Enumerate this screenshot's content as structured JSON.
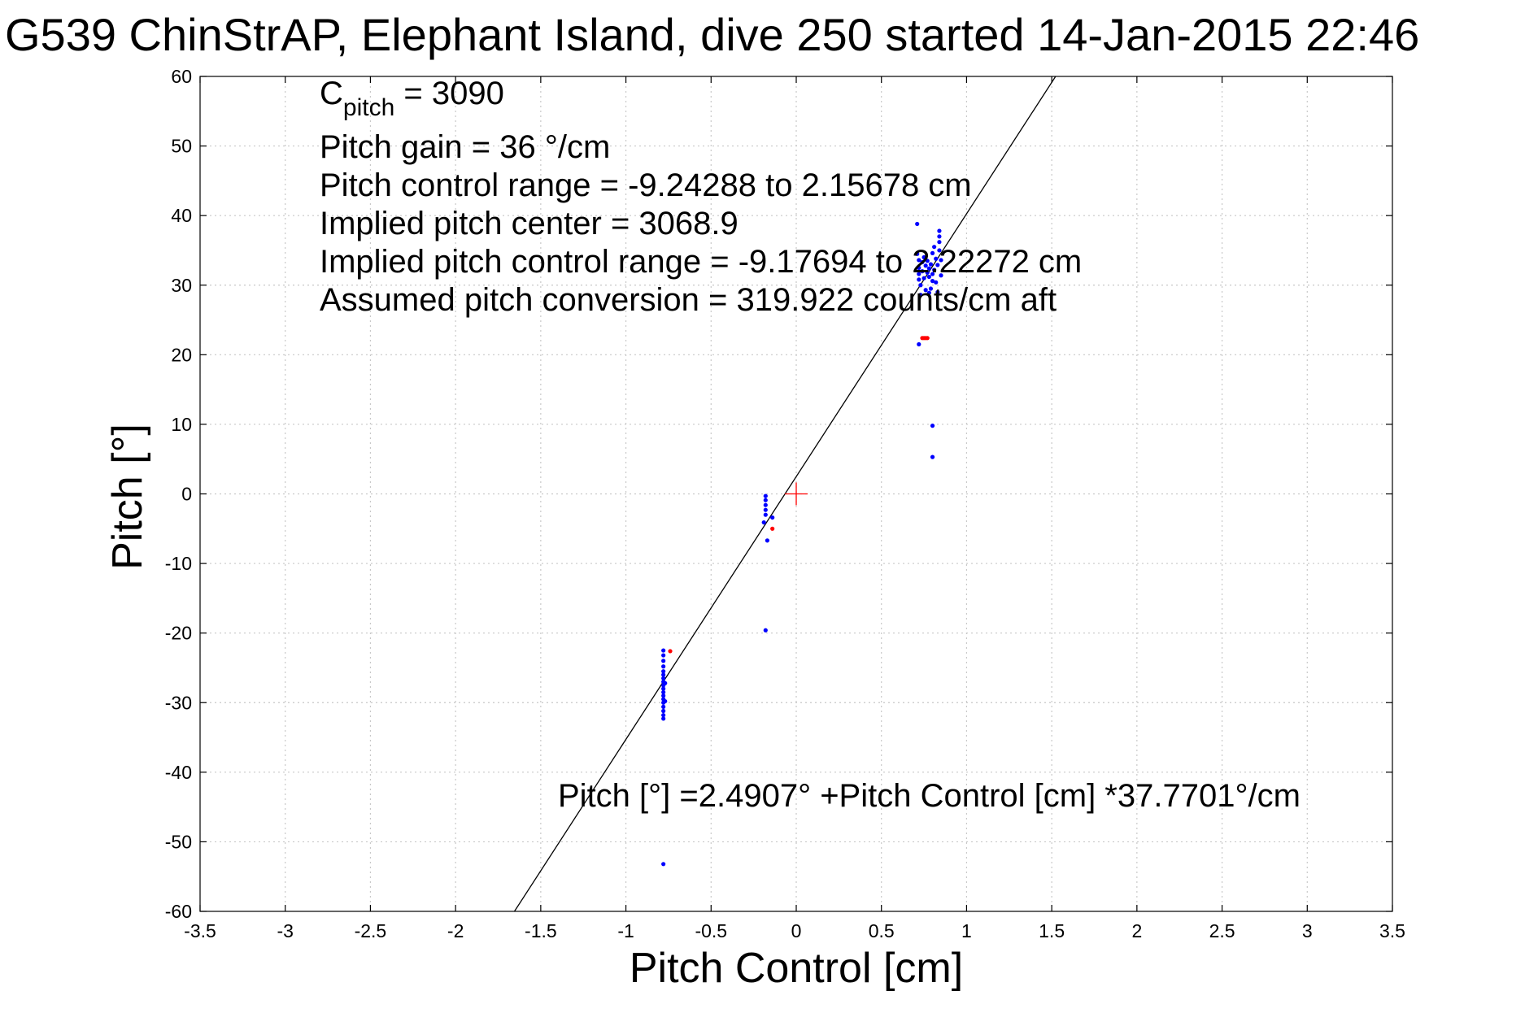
{
  "chart_data": {
    "type": "scatter",
    "title": "G539 ChinStrAP, Elephant Island, dive 250 started 14-Jan-2015 22:46",
    "xlabel": "Pitch Control [cm]",
    "ylabel": "Pitch [°]",
    "xlim": [
      -3.5,
      3.5
    ],
    "ylim": [
      -60,
      60
    ],
    "xticks": [
      -3.5,
      -3,
      -2.5,
      -2,
      -1.5,
      -1,
      -0.5,
      0,
      0.5,
      1,
      1.5,
      2,
      2.5,
      3,
      3.5
    ],
    "yticks": [
      -60,
      -50,
      -40,
      -30,
      -20,
      -10,
      0,
      10,
      20,
      30,
      40,
      50,
      60
    ],
    "xtick_labels": [
      "-3.5",
      "-3",
      "-2.5",
      "-2",
      "-1.5",
      "-1",
      "-0.5",
      "0",
      "0.5",
      "1",
      "1.5",
      "2",
      "2.5",
      "3",
      "3.5"
    ],
    "ytick_labels": [
      "-60",
      "-50",
      "-40",
      "-30",
      "-20",
      "-10",
      "0",
      "10",
      "20",
      "30",
      "40",
      "50",
      "60"
    ],
    "grid": true,
    "fit_line": {
      "intercept": 2.4907,
      "slope": 37.7701
    },
    "center_marker": {
      "x": 0,
      "y": 0,
      "color": "#ff0000"
    },
    "series": [
      {
        "color": "#0000ff",
        "points": [
          [
            -0.78,
            -22.5
          ],
          [
            -0.78,
            -23.2
          ],
          [
            -0.78,
            -24.0
          ],
          [
            -0.78,
            -24.8
          ],
          [
            -0.78,
            -25.5
          ],
          [
            -0.78,
            -26.0
          ],
          [
            -0.78,
            -26.5
          ],
          [
            -0.78,
            -27.0
          ],
          [
            -0.78,
            -27.5
          ],
          [
            -0.78,
            -28.0
          ],
          [
            -0.78,
            -28.5
          ],
          [
            -0.78,
            -29.0
          ],
          [
            -0.78,
            -29.5
          ],
          [
            -0.78,
            -30.0
          ],
          [
            -0.78,
            -30.6
          ],
          [
            -0.78,
            -31.2
          ],
          [
            -0.78,
            -31.8
          ],
          [
            -0.78,
            -32.3
          ],
          [
            -0.77,
            -27.2
          ],
          [
            -0.77,
            -29.8
          ],
          [
            -0.78,
            -53.2
          ],
          [
            -0.18,
            -0.3
          ],
          [
            -0.18,
            -0.9
          ],
          [
            -0.18,
            -1.6
          ],
          [
            -0.18,
            -2.3
          ],
          [
            -0.18,
            -3.0
          ],
          [
            -0.19,
            -4.1
          ],
          [
            -0.14,
            -3.4
          ],
          [
            -0.17,
            -6.7
          ],
          [
            -0.18,
            -19.6
          ],
          [
            0.71,
            38.8
          ],
          [
            0.71,
            34.5
          ],
          [
            0.72,
            33.6
          ],
          [
            0.72,
            32.5
          ],
          [
            0.72,
            31.6
          ],
          [
            0.72,
            30.8
          ],
          [
            0.73,
            30.0
          ],
          [
            0.74,
            33.3
          ],
          [
            0.74,
            32.0
          ],
          [
            0.75,
            31.0
          ],
          [
            0.75,
            34.0
          ],
          [
            0.76,
            32.8
          ],
          [
            0.77,
            31.8
          ],
          [
            0.77,
            33.5
          ],
          [
            0.78,
            31.2
          ],
          [
            0.78,
            32.4
          ],
          [
            0.79,
            33.0
          ],
          [
            0.79,
            29.5
          ],
          [
            0.8,
            31.6
          ],
          [
            0.8,
            34.6
          ],
          [
            0.81,
            32.2
          ],
          [
            0.81,
            35.5
          ],
          [
            0.82,
            33.8
          ],
          [
            0.82,
            30.4
          ],
          [
            0.83,
            32.9
          ],
          [
            0.83,
            29.0
          ],
          [
            0.84,
            37.8
          ],
          [
            0.84,
            37.0
          ],
          [
            0.84,
            36.2
          ],
          [
            0.84,
            35.0
          ],
          [
            0.85,
            33.6
          ],
          [
            0.85,
            31.4
          ],
          [
            0.73,
            28.6
          ],
          [
            0.76,
            29.3
          ],
          [
            0.78,
            28.9
          ],
          [
            0.8,
            30.6
          ],
          [
            0.72,
            21.5
          ],
          [
            0.8,
            9.8
          ],
          [
            0.8,
            5.3
          ]
        ]
      },
      {
        "color": "#ff0000",
        "points": [
          [
            0.74,
            22.4
          ],
          [
            0.75,
            22.4
          ],
          [
            0.76,
            22.4
          ],
          [
            0.77,
            22.4
          ],
          [
            -0.14,
            -5.0
          ],
          [
            -0.74,
            -22.6
          ]
        ]
      }
    ]
  },
  "annotations": {
    "cpitch_main": "C",
    "cpitch_sub": "pitch",
    "cpitch_value": " = 3090",
    "gain": "Pitch gain = 36 °/cm",
    "range": "Pitch control range = -9.24288 to 2.15678 cm",
    "center": "Implied pitch center = 3068.9",
    "implied_range": "Implied pitch control range = -9.17694 to 2.22272 cm",
    "conversion": "Assumed pitch conversion = 319.922 counts/cm aft",
    "fit_equation": "Pitch [°] =2.4907° +Pitch Control [cm] *37.7701°/cm"
  }
}
